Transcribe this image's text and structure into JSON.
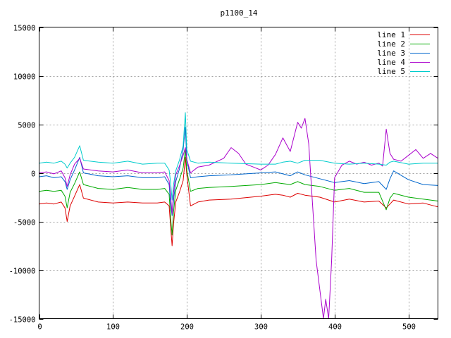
{
  "chart_data": {
    "type": "line",
    "title": "p1100_14",
    "xlabel": "",
    "ylabel": "",
    "xlim": [
      0,
      540
    ],
    "ylim": [
      -15000,
      15000
    ],
    "xticks": [
      0,
      100,
      200,
      300,
      400,
      500
    ],
    "yticks": [
      -15000,
      -10000,
      -5000,
      0,
      5000,
      10000,
      15000
    ],
    "grid": true,
    "legend_position": "top-right",
    "series": [
      {
        "name": "line 1",
        "color": "#dd0000",
        "x": [
          0,
          10,
          20,
          30,
          35,
          38,
          42,
          48,
          55,
          60,
          80,
          100,
          120,
          140,
          160,
          170,
          176,
          178,
          180,
          182,
          185,
          190,
          195,
          198,
          200,
          205,
          215,
          230,
          260,
          300,
          320,
          330,
          340,
          350,
          360,
          380,
          400,
          420,
          440,
          460,
          470,
          475,
          480,
          500,
          520,
          540
        ],
        "y": [
          -3200,
          -3100,
          -3200,
          -3000,
          -3600,
          -5000,
          -3400,
          -2400,
          -1200,
          -2600,
          -3000,
          -3100,
          -3000,
          -3100,
          -3100,
          -3000,
          -3400,
          -5500,
          -7500,
          -5200,
          -3000,
          -2000,
          -800,
          1600,
          -200,
          -3400,
          -3000,
          -2800,
          -2700,
          -2400,
          -2200,
          -2300,
          -2500,
          -2100,
          -2300,
          -2500,
          -3000,
          -2700,
          -3000,
          -2900,
          -3600,
          -3200,
          -2800,
          -3200,
          -3100,
          -3500
        ]
      },
      {
        "name": "line 2",
        "color": "#00aa00",
        "x": [
          0,
          10,
          20,
          30,
          35,
          38,
          42,
          48,
          55,
          60,
          80,
          100,
          120,
          140,
          160,
          170,
          176,
          178,
          180,
          182,
          185,
          190,
          195,
          198,
          200,
          205,
          215,
          230,
          260,
          300,
          320,
          330,
          340,
          350,
          360,
          380,
          400,
          420,
          440,
          460,
          470,
          475,
          480,
          500,
          520,
          540
        ],
        "y": [
          -1900,
          -1800,
          -1900,
          -1800,
          -2400,
          -3600,
          -2000,
          -1100,
          100,
          -1200,
          -1600,
          -1700,
          -1500,
          -1700,
          -1700,
          -1600,
          -2200,
          -4600,
          -6400,
          -4000,
          -1800,
          -700,
          500,
          2400,
          300,
          -1900,
          -1600,
          -1500,
          -1400,
          -1200,
          -1000,
          -1100,
          -1200,
          -900,
          -1200,
          -1400,
          -1800,
          -1600,
          -2000,
          -2000,
          -3800,
          -2600,
          -2100,
          -2500,
          -2700,
          -2900
        ]
      },
      {
        "name": "line 3",
        "color": "#0066cc",
        "x": [
          0,
          10,
          20,
          30,
          35,
          38,
          42,
          48,
          55,
          60,
          80,
          100,
          120,
          140,
          160,
          170,
          176,
          178,
          180,
          182,
          185,
          190,
          195,
          198,
          200,
          205,
          215,
          230,
          260,
          300,
          320,
          330,
          340,
          350,
          360,
          380,
          400,
          420,
          440,
          460,
          470,
          475,
          480,
          500,
          520,
          540
        ],
        "y": [
          -400,
          -300,
          -500,
          -400,
          -900,
          -1700,
          -700,
          300,
          1600,
          0,
          -300,
          -400,
          -300,
          -500,
          -500,
          -400,
          -1200,
          -3200,
          -4400,
          -2800,
          -900,
          400,
          2400,
          4700,
          1300,
          -500,
          -400,
          -300,
          -200,
          0,
          100,
          -100,
          -300,
          100,
          -200,
          -600,
          -1000,
          -800,
          -1100,
          -900,
          -1700,
          -600,
          200,
          -700,
          -1200,
          -1300
        ]
      },
      {
        "name": "line 4",
        "color": "#aa00cc",
        "x": [
          0,
          10,
          20,
          30,
          35,
          38,
          42,
          48,
          55,
          60,
          80,
          100,
          120,
          140,
          160,
          170,
          176,
          178,
          180,
          182,
          185,
          190,
          195,
          198,
          200,
          205,
          215,
          230,
          250,
          260,
          270,
          280,
          290,
          300,
          310,
          320,
          330,
          340,
          350,
          355,
          360,
          365,
          370,
          375,
          380,
          385,
          388,
          392,
          396,
          400,
          410,
          420,
          430,
          440,
          450,
          460,
          465,
          470,
          475,
          480,
          490,
          500,
          510,
          520,
          530,
          540
        ],
        "y": [
          0,
          100,
          -100,
          200,
          -500,
          -1400,
          -200,
          900,
          1500,
          400,
          200,
          100,
          300,
          0,
          0,
          100,
          -800,
          -2400,
          -4200,
          -2000,
          -200,
          700,
          1800,
          2600,
          1400,
          0,
          600,
          800,
          1500,
          2600,
          2000,
          900,
          600,
          300,
          800,
          1900,
          3600,
          2200,
          5200,
          4600,
          5600,
          3000,
          -3000,
          -9000,
          -12000,
          -15000,
          -13000,
          -15000,
          -9000,
          -500,
          800,
          1200,
          900,
          1100,
          800,
          1000,
          700,
          4500,
          2000,
          1400,
          1200,
          1800,
          2400,
          1500,
          2000,
          1500
        ]
      },
      {
        "name": "line 5",
        "color": "#00cccc",
        "x": [
          0,
          10,
          20,
          30,
          35,
          38,
          42,
          48,
          55,
          60,
          80,
          100,
          120,
          140,
          160,
          170,
          176,
          178,
          180,
          182,
          185,
          190,
          195,
          198,
          200,
          205,
          215,
          230,
          260,
          300,
          320,
          330,
          340,
          350,
          360,
          380,
          400,
          420,
          440,
          460,
          470,
          475,
          480,
          500,
          520,
          540
        ],
        "y": [
          1000,
          1100,
          1000,
          1200,
          900,
          500,
          1000,
          1600,
          2800,
          1300,
          1100,
          1000,
          1200,
          900,
          1000,
          1000,
          300,
          -1000,
          -2800,
          -1200,
          200,
          1300,
          2800,
          6200,
          2400,
          1200,
          1000,
          1100,
          1000,
          900,
          900,
          1100,
          1200,
          1000,
          1300,
          1300,
          1000,
          900,
          1000,
          900,
          800,
          1100,
          1200,
          900,
          1000,
          1000
        ]
      }
    ]
  }
}
